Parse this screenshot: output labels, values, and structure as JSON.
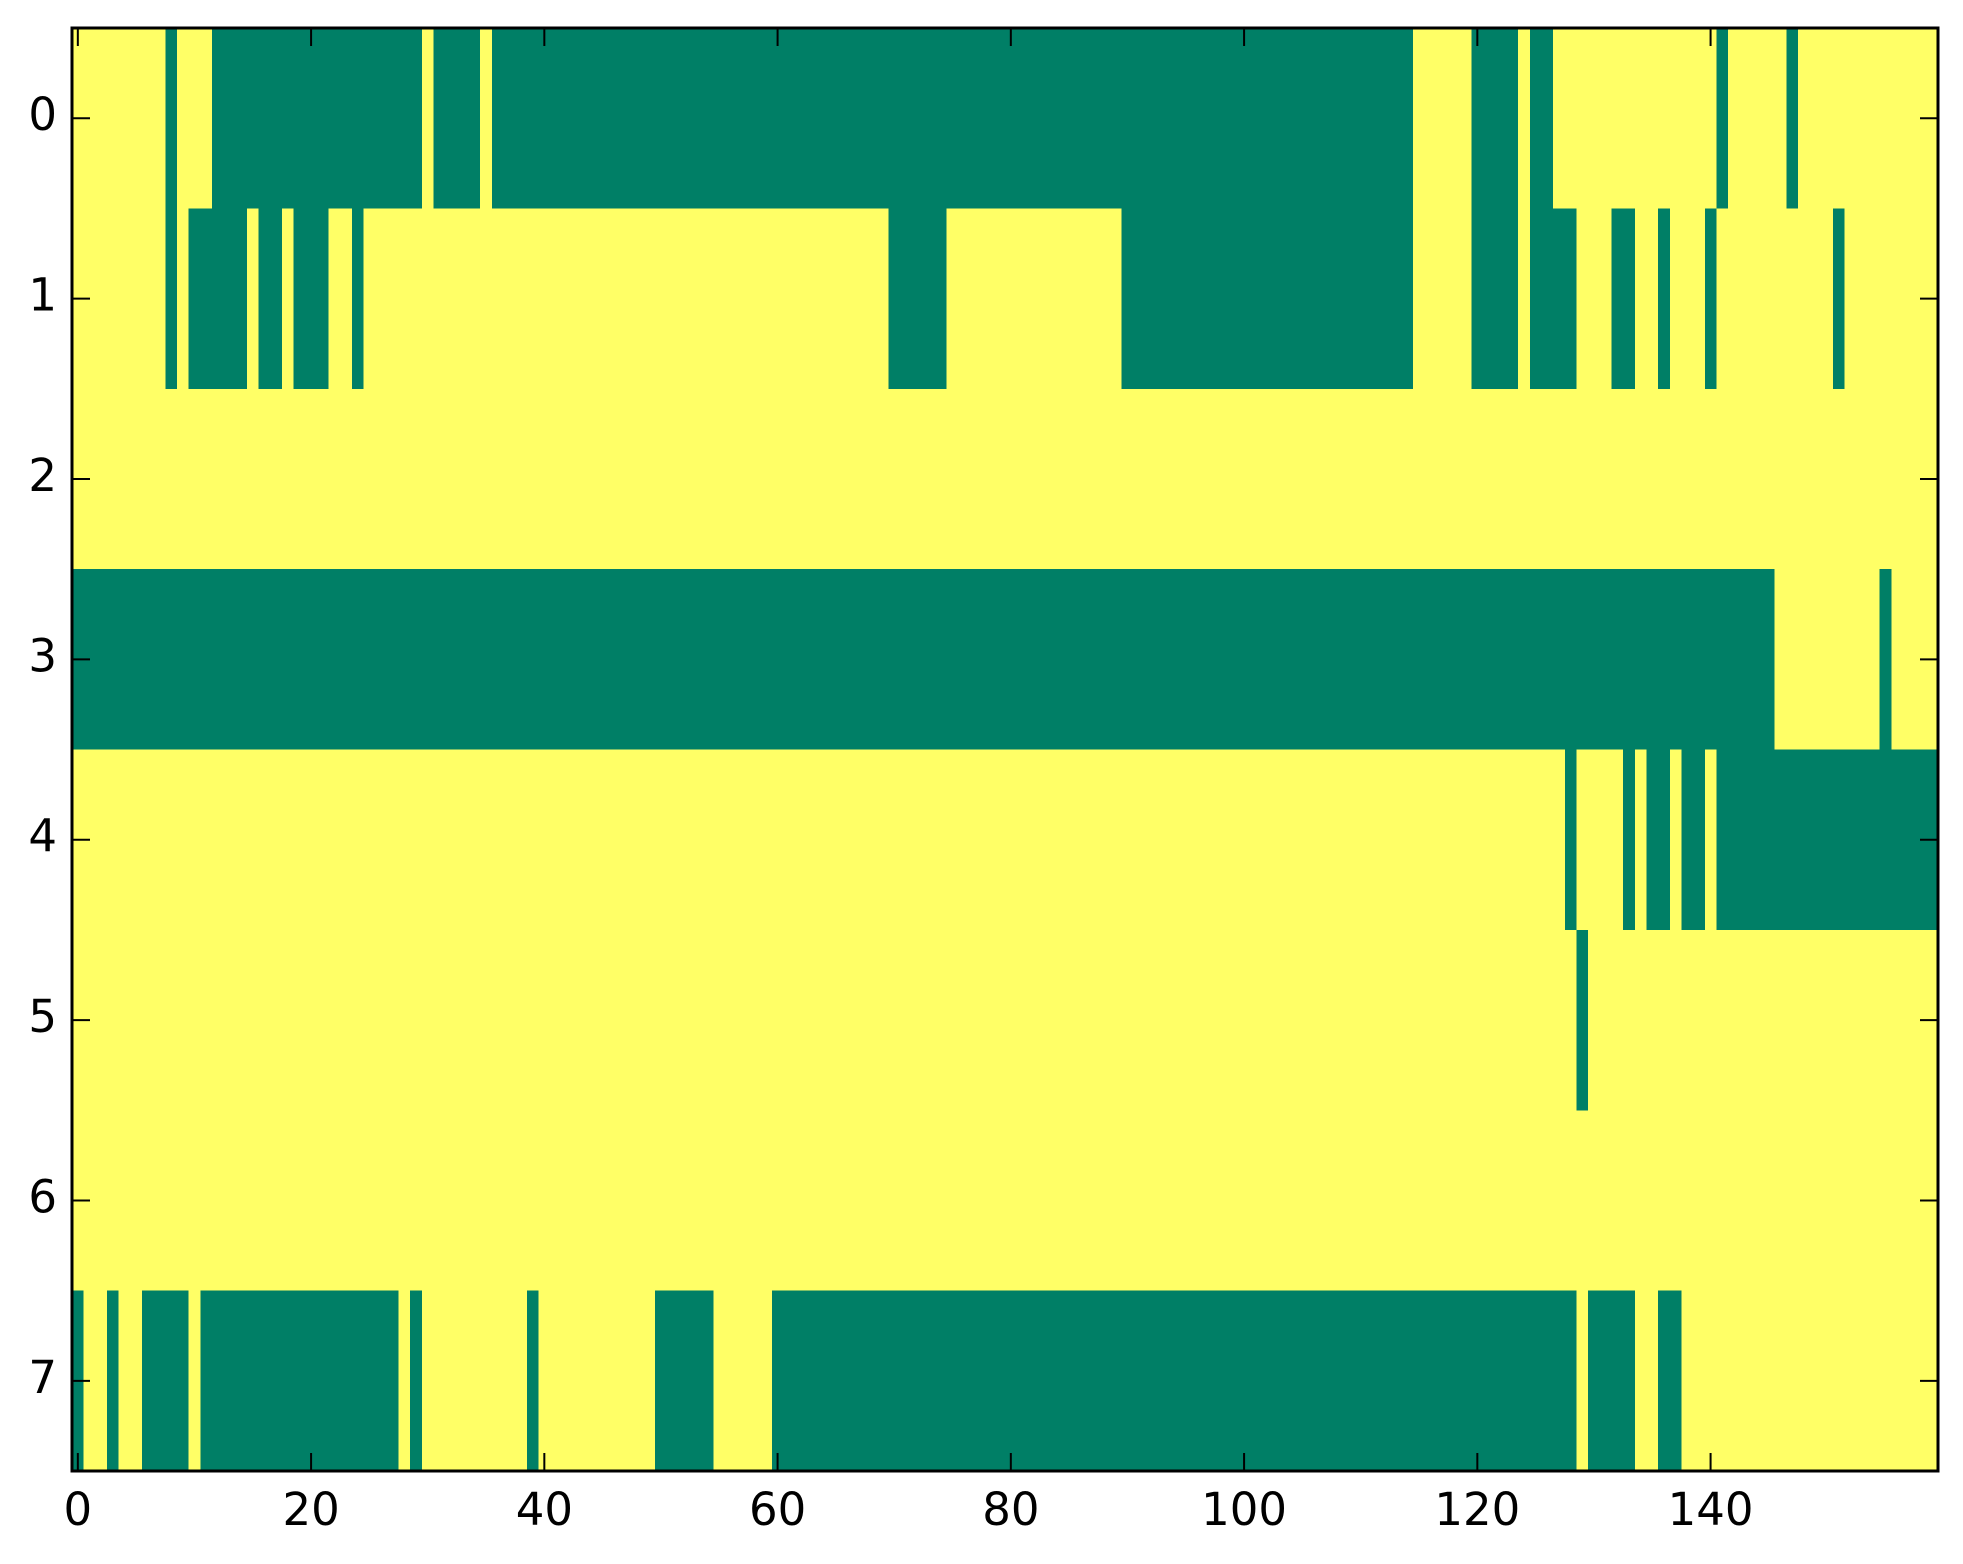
{
  "chart_data": {
    "type": "heatmap",
    "origin": "upper",
    "colors": [
      "#007f66",
      "#ffff66"
    ],
    "xlim": [
      -0.5,
      159.5
    ],
    "ylim": [
      -0.5,
      7.5
    ],
    "xticks": [
      0,
      20,
      40,
      60,
      80,
      100,
      120,
      140
    ],
    "yticks": [
      0,
      1,
      2,
      3,
      4,
      5,
      6,
      7
    ],
    "z": [
      [
        1,
        1,
        1,
        1,
        1,
        1,
        1,
        1,
        0,
        1,
        1,
        1,
        0,
        0,
        0,
        0,
        0,
        0,
        0,
        0,
        0,
        0,
        0,
        0,
        0,
        0,
        0,
        0,
        0,
        0,
        1,
        0,
        0,
        0,
        0,
        1,
        0,
        0,
        0,
        0,
        0,
        0,
        0,
        0,
        0,
        0,
        0,
        0,
        0,
        0,
        0,
        0,
        0,
        0,
        0,
        0,
        0,
        0,
        0,
        0,
        0,
        0,
        0,
        0,
        0,
        0,
        0,
        0,
        0,
        0,
        0,
        0,
        0,
        0,
        0,
        0,
        0,
        0,
        0,
        0,
        0,
        0,
        0,
        0,
        0,
        0,
        0,
        0,
        0,
        0,
        0,
        0,
        0,
        0,
        0,
        0,
        0,
        0,
        0,
        0,
        0,
        0,
        0,
        0,
        0,
        0,
        0,
        0,
        0,
        0,
        0,
        0,
        0,
        0,
        0,
        1,
        1,
        1,
        1,
        1,
        0,
        0,
        0,
        0,
        1,
        0,
        0,
        1,
        1,
        1,
        1,
        1,
        1,
        1,
        1,
        1,
        1,
        1,
        1,
        1,
        1,
        0,
        1,
        1,
        1,
        1,
        1,
        0,
        1,
        1,
        1,
        1,
        1,
        1,
        1,
        1,
        1,
        1,
        1,
        1
      ],
      [
        1,
        1,
        1,
        1,
        1,
        1,
        1,
        1,
        0,
        1,
        0,
        0,
        0,
        0,
        0,
        1,
        0,
        0,
        1,
        0,
        0,
        0,
        1,
        1,
        0,
        1,
        1,
        1,
        1,
        1,
        1,
        1,
        1,
        1,
        1,
        1,
        1,
        1,
        1,
        1,
        1,
        1,
        1,
        1,
        1,
        1,
        1,
        1,
        1,
        1,
        1,
        1,
        1,
        1,
        1,
        1,
        1,
        1,
        1,
        1,
        1,
        1,
        1,
        1,
        1,
        1,
        1,
        1,
        1,
        1,
        0,
        0,
        0,
        0,
        0,
        1,
        1,
        1,
        1,
        1,
        1,
        1,
        1,
        1,
        1,
        1,
        1,
        1,
        1,
        1,
        0,
        0,
        0,
        0,
        0,
        0,
        0,
        0,
        0,
        0,
        0,
        0,
        0,
        0,
        0,
        0,
        0,
        0,
        0,
        0,
        0,
        0,
        0,
        0,
        0,
        1,
        1,
        1,
        1,
        1,
        0,
        0,
        0,
        0,
        1,
        0,
        0,
        0,
        0,
        1,
        1,
        1,
        0,
        0,
        1,
        1,
        0,
        1,
        1,
        1,
        0,
        1,
        1,
        1,
        1,
        1,
        1,
        1,
        1,
        1,
        1,
        0,
        1,
        1,
        1,
        1,
        1,
        1,
        1,
        1
      ],
      [
        1,
        1,
        1,
        1,
        1,
        1,
        1,
        1,
        1,
        1,
        1,
        1,
        1,
        1,
        1,
        1,
        1,
        1,
        1,
        1,
        1,
        1,
        1,
        1,
        1,
        1,
        1,
        1,
        1,
        1,
        1,
        1,
        1,
        1,
        1,
        1,
        1,
        1,
        1,
        1,
        1,
        1,
        1,
        1,
        1,
        1,
        1,
        1,
        1,
        1,
        1,
        1,
        1,
        1,
        1,
        1,
        1,
        1,
        1,
        1,
        1,
        1,
        1,
        1,
        1,
        1,
        1,
        1,
        1,
        1,
        1,
        1,
        1,
        1,
        1,
        1,
        1,
        1,
        1,
        1,
        1,
        1,
        1,
        1,
        1,
        1,
        1,
        1,
        1,
        1,
        1,
        1,
        1,
        1,
        1,
        1,
        1,
        1,
        1,
        1,
        1,
        1,
        1,
        1,
        1,
        1,
        1,
        1,
        1,
        1,
        1,
        1,
        1,
        1,
        1,
        1,
        1,
        1,
        1,
        1,
        1,
        1,
        1,
        1,
        1,
        1,
        1,
        1,
        1,
        1,
        1,
        1,
        1,
        1,
        1,
        1,
        1,
        1,
        1,
        1,
        1,
        1,
        1,
        1,
        1,
        1,
        1,
        1,
        1,
        1,
        1,
        1,
        1,
        1,
        1,
        1,
        1,
        1,
        1,
        1
      ],
      [
        0,
        0,
        0,
        0,
        0,
        0,
        0,
        0,
        0,
        0,
        0,
        0,
        0,
        0,
        0,
        0,
        0,
        0,
        0,
        0,
        0,
        0,
        0,
        0,
        0,
        0,
        0,
        0,
        0,
        0,
        0,
        0,
        0,
        0,
        0,
        0,
        0,
        0,
        0,
        0,
        0,
        0,
        0,
        0,
        0,
        0,
        0,
        0,
        0,
        0,
        0,
        0,
        0,
        0,
        0,
        0,
        0,
        0,
        0,
        0,
        0,
        0,
        0,
        0,
        0,
        0,
        0,
        0,
        0,
        0,
        0,
        0,
        0,
        0,
        0,
        0,
        0,
        0,
        0,
        0,
        0,
        0,
        0,
        0,
        0,
        0,
        0,
        0,
        0,
        0,
        0,
        0,
        0,
        0,
        0,
        0,
        0,
        0,
        0,
        0,
        0,
        0,
        0,
        0,
        0,
        0,
        0,
        0,
        0,
        0,
        0,
        0,
        0,
        0,
        0,
        0,
        0,
        0,
        0,
        0,
        0,
        0,
        0,
        0,
        0,
        0,
        0,
        0,
        0,
        0,
        0,
        0,
        0,
        0,
        0,
        0,
        0,
        0,
        0,
        0,
        0,
        0,
        0,
        0,
        0,
        0,
        1,
        1,
        1,
        1,
        1,
        1,
        1,
        1,
        1,
        0,
        1,
        1,
        1,
        1
      ],
      [
        1,
        1,
        1,
        1,
        1,
        1,
        1,
        1,
        1,
        1,
        1,
        1,
        1,
        1,
        1,
        1,
        1,
        1,
        1,
        1,
        1,
        1,
        1,
        1,
        1,
        1,
        1,
        1,
        1,
        1,
        1,
        1,
        1,
        1,
        1,
        1,
        1,
        1,
        1,
        1,
        1,
        1,
        1,
        1,
        1,
        1,
        1,
        1,
        1,
        1,
        1,
        1,
        1,
        1,
        1,
        1,
        1,
        1,
        1,
        1,
        1,
        1,
        1,
        1,
        1,
        1,
        1,
        1,
        1,
        1,
        1,
        1,
        1,
        1,
        1,
        1,
        1,
        1,
        1,
        1,
        1,
        1,
        1,
        1,
        1,
        1,
        1,
        1,
        1,
        1,
        1,
        1,
        1,
        1,
        1,
        1,
        1,
        1,
        1,
        1,
        1,
        1,
        1,
        1,
        1,
        1,
        1,
        1,
        1,
        1,
        1,
        1,
        1,
        1,
        1,
        1,
        1,
        1,
        1,
        1,
        1,
        1,
        1,
        1,
        1,
        1,
        1,
        1,
        0,
        1,
        1,
        1,
        1,
        0,
        1,
        0,
        0,
        1,
        0,
        0,
        1,
        0,
        0,
        0,
        0,
        0,
        0,
        0,
        0,
        0,
        0,
        0,
        0,
        0,
        0,
        0,
        0,
        0,
        0,
        0
      ],
      [
        1,
        1,
        1,
        1,
        1,
        1,
        1,
        1,
        1,
        1,
        1,
        1,
        1,
        1,
        1,
        1,
        1,
        1,
        1,
        1,
        1,
        1,
        1,
        1,
        1,
        1,
        1,
        1,
        1,
        1,
        1,
        1,
        1,
        1,
        1,
        1,
        1,
        1,
        1,
        1,
        1,
        1,
        1,
        1,
        1,
        1,
        1,
        1,
        1,
        1,
        1,
        1,
        1,
        1,
        1,
        1,
        1,
        1,
        1,
        1,
        1,
        1,
        1,
        1,
        1,
        1,
        1,
        1,
        1,
        1,
        1,
        1,
        1,
        1,
        1,
        1,
        1,
        1,
        1,
        1,
        1,
        1,
        1,
        1,
        1,
        1,
        1,
        1,
        1,
        1,
        1,
        1,
        1,
        1,
        1,
        1,
        1,
        1,
        1,
        1,
        1,
        1,
        1,
        1,
        1,
        1,
        1,
        1,
        1,
        1,
        1,
        1,
        1,
        1,
        1,
        1,
        1,
        1,
        1,
        1,
        1,
        1,
        1,
        1,
        1,
        1,
        1,
        1,
        1,
        0,
        1,
        1,
        1,
        1,
        1,
        1,
        1,
        1,
        1,
        1,
        1,
        1,
        1,
        1,
        1,
        1,
        1,
        1,
        1,
        1,
        1,
        1,
        1,
        1,
        1,
        1,
        1,
        1,
        1,
        1
      ],
      [
        1,
        1,
        1,
        1,
        1,
        1,
        1,
        1,
        1,
        1,
        1,
        1,
        1,
        1,
        1,
        1,
        1,
        1,
        1,
        1,
        1,
        1,
        1,
        1,
        1,
        1,
        1,
        1,
        1,
        1,
        1,
        1,
        1,
        1,
        1,
        1,
        1,
        1,
        1,
        1,
        1,
        1,
        1,
        1,
        1,
        1,
        1,
        1,
        1,
        1,
        1,
        1,
        1,
        1,
        1,
        1,
        1,
        1,
        1,
        1,
        1,
        1,
        1,
        1,
        1,
        1,
        1,
        1,
        1,
        1,
        1,
        1,
        1,
        1,
        1,
        1,
        1,
        1,
        1,
        1,
        1,
        1,
        1,
        1,
        1,
        1,
        1,
        1,
        1,
        1,
        1,
        1,
        1,
        1,
        1,
        1,
        1,
        1,
        1,
        1,
        1,
        1,
        1,
        1,
        1,
        1,
        1,
        1,
        1,
        1,
        1,
        1,
        1,
        1,
        1,
        1,
        1,
        1,
        1,
        1,
        1,
        1,
        1,
        1,
        1,
        1,
        1,
        1,
        1,
        1,
        1,
        1,
        1,
        1,
        1,
        1,
        1,
        1,
        1,
        1,
        1,
        1,
        1,
        1,
        1,
        1,
        1,
        1,
        1,
        1,
        1,
        1,
        1,
        1,
        1,
        1,
        1,
        1,
        1,
        1
      ],
      [
        0,
        1,
        1,
        0,
        1,
        1,
        0,
        0,
        0,
        0,
        1,
        0,
        0,
        0,
        0,
        0,
        0,
        0,
        0,
        0,
        0,
        0,
        0,
        0,
        0,
        0,
        0,
        0,
        1,
        0,
        1,
        1,
        1,
        1,
        1,
        1,
        1,
        1,
        1,
        0,
        1,
        1,
        1,
        1,
        1,
        1,
        1,
        1,
        1,
        1,
        0,
        0,
        0,
        0,
        0,
        1,
        1,
        1,
        1,
        1,
        0,
        0,
        0,
        0,
        0,
        0,
        0,
        0,
        0,
        0,
        0,
        0,
        0,
        0,
        0,
        0,
        0,
        0,
        0,
        0,
        0,
        0,
        0,
        0,
        0,
        0,
        0,
        0,
        0,
        0,
        0,
        0,
        0,
        0,
        0,
        0,
        0,
        0,
        0,
        0,
        0,
        0,
        0,
        0,
        0,
        0,
        0,
        0,
        0,
        0,
        0,
        0,
        0,
        0,
        0,
        0,
        0,
        0,
        0,
        0,
        0,
        0,
        0,
        0,
        0,
        0,
        0,
        0,
        0,
        1,
        0,
        0,
        0,
        0,
        1,
        1,
        0,
        0,
        1,
        1,
        1,
        1,
        1,
        1,
        1,
        1,
        1,
        1,
        1,
        1,
        1,
        1,
        1,
        1,
        1,
        1,
        1,
        1,
        1,
        1
      ]
    ]
  }
}
